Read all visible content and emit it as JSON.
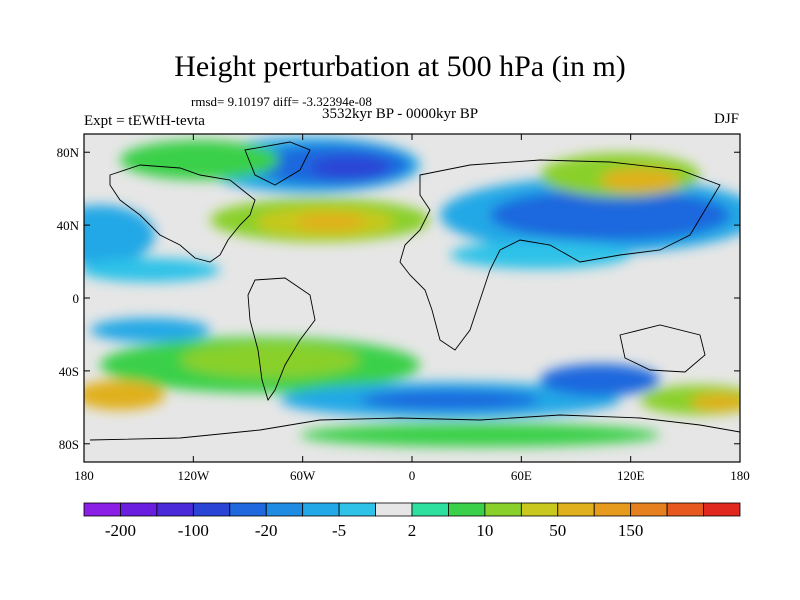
{
  "header": {
    "title": "Height perturbation at 500 hPa (in m)",
    "stats": "rmsd= 9.10197 diff= -3.32394e-08",
    "experiment": "Expt = tEWtH-tevta",
    "period": "3532kyr BP - 0000kyr BP",
    "season": "DJF"
  },
  "map": {
    "projection": "cylindrical-equidistant",
    "lon_range": [
      -180,
      180
    ],
    "lat_range": [
      -90,
      90
    ],
    "x_ticks": [
      {
        "value": -180,
        "label": "180"
      },
      {
        "value": -120,
        "label": "120W"
      },
      {
        "value": -60,
        "label": "60W"
      },
      {
        "value": 0,
        "label": "0"
      },
      {
        "value": 60,
        "label": "60E"
      },
      {
        "value": 120,
        "label": "120E"
      },
      {
        "value": 180,
        "label": "180"
      }
    ],
    "y_ticks": [
      {
        "value": 80,
        "label": "80N"
      },
      {
        "value": 40,
        "label": "40N"
      },
      {
        "value": 0,
        "label": "0"
      },
      {
        "value": -40,
        "label": "40S"
      },
      {
        "value": -80,
        "label": "80S"
      }
    ]
  },
  "colorbar": {
    "colors": [
      "#8c1fe6",
      "#6a1ee0",
      "#4a2ad9",
      "#2a44d6",
      "#1f68de",
      "#1f8ce3",
      "#22a8e6",
      "#2ec2e8",
      "#e6e6e6",
      "#2ee0a0",
      "#3ad04a",
      "#8ad02a",
      "#c8c81e",
      "#e0b01e",
      "#e69a1e",
      "#e6801e",
      "#e6581e",
      "#e0281e"
    ],
    "labels": [
      {
        "after_index": 0,
        "text": "-200"
      },
      {
        "after_index": 2,
        "text": "-100"
      },
      {
        "after_index": 4,
        "text": "-20"
      },
      {
        "after_index": 6,
        "text": "-5"
      },
      {
        "after_index": 8,
        "text": "2"
      },
      {
        "after_index": 10,
        "text": "10"
      },
      {
        "after_index": 12,
        "text": "50"
      },
      {
        "after_index": 14,
        "text": "150"
      }
    ]
  }
}
